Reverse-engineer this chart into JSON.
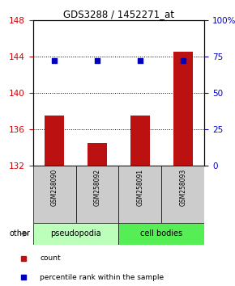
{
  "title": "GDS3288 / 1452271_at",
  "samples": [
    "GSM258090",
    "GSM258092",
    "GSM258091",
    "GSM258093"
  ],
  "bar_values": [
    137.5,
    134.5,
    137.5,
    144.5
  ],
  "percentile_pct": [
    72,
    72,
    72,
    72
  ],
  "ymin": 132,
  "ymax": 148,
  "yticks": [
    132,
    136,
    140,
    144,
    148
  ],
  "y2ticks": [
    0,
    25,
    50,
    75,
    100
  ],
  "y2labels": [
    "0",
    "25",
    "50",
    "75",
    "100%"
  ],
  "bar_color": "#bb1111",
  "dot_color": "#0000bb",
  "group_labels": [
    "pseudopodia",
    "cell bodies"
  ],
  "group_colors": [
    "#bbffbb",
    "#55ee55"
  ],
  "tick_label_color_left": "#cc0000",
  "tick_label_color_right": "#0000cc",
  "legend_items": [
    {
      "color": "#bb1111",
      "label": "count"
    },
    {
      "color": "#0000bb",
      "label": "percentile rank within the sample"
    }
  ],
  "other_label": "other",
  "bar_bottom": 132,
  "bar_width": 0.45,
  "dotted_lines": [
    136,
    140,
    144
  ]
}
